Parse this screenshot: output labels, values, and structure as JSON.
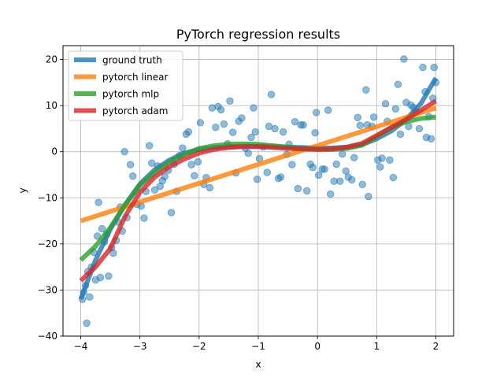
{
  "chart_data": {
    "type": "line",
    "title": "PyTorch regression results",
    "xlabel": "x",
    "ylabel": "y",
    "xlim": [
      -4.3,
      2.3
    ],
    "ylim": [
      -40,
      23
    ],
    "xticks": [
      -4,
      -3,
      -2,
      -1,
      0,
      1,
      2
    ],
    "yticks": [
      -40,
      -30,
      -20,
      -10,
      0,
      10,
      20
    ],
    "grid": true,
    "legend_position": "top-left",
    "scatter": {
      "color": "#1f77b4",
      "points": [
        [
          -3.97,
          -32
        ],
        [
          -3.95,
          -30.5
        ],
        [
          -3.92,
          -29
        ],
        [
          -3.9,
          -37.2
        ],
        [
          -3.88,
          -26
        ],
        [
          -3.85,
          -31.5
        ],
        [
          -3.82,
          -25
        ],
        [
          -3.78,
          -21.8
        ],
        [
          -3.75,
          -27.8
        ],
        [
          -3.72,
          -18.3
        ],
        [
          -3.7,
          -11
        ],
        [
          -3.67,
          -27.3
        ],
        [
          -3.64,
          -16.7
        ],
        [
          -3.6,
          -19.5
        ],
        [
          -3.56,
          -17.9
        ],
        [
          -3.53,
          -27
        ],
        [
          -3.48,
          -20.8
        ],
        [
          -3.45,
          -22
        ],
        [
          -3.4,
          -19.2
        ],
        [
          -3.36,
          -15.3
        ],
        [
          -3.33,
          -12
        ],
        [
          -3.3,
          -17.2
        ],
        [
          -3.26,
          0
        ],
        [
          -3.22,
          -14.3
        ],
        [
          -3.16,
          -2.8
        ],
        [
          -3.12,
          -5.3
        ],
        [
          -3.05,
          -11.4
        ],
        [
          -2.98,
          -11.8
        ],
        [
          -2.93,
          -14.4
        ],
        [
          -2.9,
          -8.6
        ],
        [
          -2.84,
          1.3
        ],
        [
          -2.8,
          -2.5
        ],
        [
          -2.75,
          -8.3
        ],
        [
          -2.7,
          -3.1
        ],
        [
          -2.66,
          -7.5
        ],
        [
          -2.62,
          -6.3
        ],
        [
          -2.58,
          -5.4
        ],
        [
          -2.52,
          -4
        ],
        [
          -2.47,
          -13.2
        ],
        [
          -2.42,
          -2.7
        ],
        [
          -2.38,
          -8.6
        ],
        [
          -2.33,
          -0.8
        ],
        [
          -2.28,
          0.8
        ],
        [
          -2.22,
          3.8
        ],
        [
          -2.18,
          4.3
        ],
        [
          -2.13,
          -2.8
        ],
        [
          -2.08,
          -5.2
        ],
        [
          -2.02,
          -2.2
        ],
        [
          -1.98,
          6.3
        ],
        [
          -1.92,
          -7.1
        ],
        [
          -1.88,
          -5.6
        ],
        [
          -1.82,
          -7.8
        ],
        [
          -1.78,
          9.5
        ],
        [
          -1.72,
          5.3
        ],
        [
          -1.68,
          9.8
        ],
        [
          -1.63,
          9.1
        ],
        [
          -1.58,
          6
        ],
        [
          -1.52,
          1.7
        ],
        [
          -1.48,
          11
        ],
        [
          -1.43,
          4.2
        ],
        [
          -1.38,
          -4.6
        ],
        [
          -1.33,
          6.6
        ],
        [
          -1.28,
          7.3
        ],
        [
          -1.22,
          0.8
        ],
        [
          -1.17,
          -0.3
        ],
        [
          -1.12,
          3.1
        ],
        [
          -1.08,
          9.5
        ],
        [
          -1.05,
          4.3
        ],
        [
          -1.02,
          -6
        ],
        [
          -0.98,
          -1.5
        ],
        [
          -0.92,
          1
        ],
        [
          -0.85,
          -4.5
        ],
        [
          -0.82,
          5.5
        ],
        [
          -0.78,
          12.4
        ],
        [
          -0.72,
          5
        ],
        [
          -0.66,
          -5.8
        ],
        [
          -0.62,
          -5.5
        ],
        [
          -0.58,
          4.3
        ],
        [
          -0.52,
          -0.6
        ],
        [
          -0.48,
          1.6
        ],
        [
          -0.43,
          -2.8
        ],
        [
          -0.38,
          6.5
        ],
        [
          -0.33,
          -8
        ],
        [
          -0.28,
          5.8
        ],
        [
          -0.24,
          5.8
        ],
        [
          -0.18,
          -8.5
        ],
        [
          -0.12,
          -2.7
        ],
        [
          -0.08,
          -3.4
        ],
        [
          -0.04,
          4.1
        ],
        [
          -0.02,
          8.5
        ],
        [
          0.02,
          -5.1
        ],
        [
          0.08,
          -3.8
        ],
        [
          0.12,
          -3.8
        ],
        [
          0.18,
          9
        ],
        [
          0.22,
          -9.2
        ],
        [
          0.28,
          -6.4
        ],
        [
          0.32,
          -2.7
        ],
        [
          0.38,
          -6.4
        ],
        [
          0.42,
          -0.5
        ],
        [
          0.48,
          -4.2
        ],
        [
          0.52,
          -5.5
        ],
        [
          0.58,
          -6.1
        ],
        [
          0.62,
          -1.3
        ],
        [
          0.68,
          7.4
        ],
        [
          0.72,
          5.7
        ],
        [
          0.76,
          -7.1
        ],
        [
          0.82,
          13.4
        ],
        [
          0.84,
          5.8
        ],
        [
          0.86,
          -9.7
        ],
        [
          0.92,
          5.5
        ],
        [
          0.95,
          7.5
        ],
        [
          1.02,
          -1.8
        ],
        [
          1.06,
          -3.3
        ],
        [
          1.09,
          -1.4
        ],
        [
          1.15,
          10.4
        ],
        [
          1.18,
          6.6
        ],
        [
          1.22,
          -1.8
        ],
        [
          1.28,
          -5.6
        ],
        [
          1.32,
          9.3
        ],
        [
          1.36,
          14.6
        ],
        [
          1.4,
          3.8
        ],
        [
          1.46,
          20.1
        ],
        [
          1.5,
          10.7
        ],
        [
          1.54,
          5.5
        ],
        [
          1.58,
          10.1
        ],
        [
          1.62,
          9.6
        ],
        [
          1.66,
          8.6
        ],
        [
          1.72,
          5
        ],
        [
          1.78,
          18.3
        ],
        [
          1.82,
          13
        ],
        [
          1.84,
          3.1
        ],
        [
          1.88,
          7.6
        ],
        [
          1.92,
          2.8
        ],
        [
          1.95,
          11.6
        ],
        [
          1.97,
          18.3
        ],
        [
          2,
          15
        ]
      ]
    },
    "series": [
      {
        "name": "ground truth",
        "color": "#1f77b4",
        "x": [
          -4,
          -3.75,
          -3.5,
          -3.25,
          -3,
          -2.75,
          -2.5,
          -2.25,
          -2,
          -1.75,
          -1.5,
          -1.25,
          -1,
          -0.75,
          -0.5,
          -0.25,
          0,
          0.25,
          0.5,
          0.75,
          1,
          1.25,
          1.5,
          1.75,
          2
        ],
        "y": [
          -32,
          -23.5,
          -16.8,
          -11.5,
          -7,
          -3.9,
          -1.8,
          -0.3,
          0.5,
          0.9,
          1.1,
          1.2,
          1.2,
          1.1,
          1,
          0.9,
          0.8,
          0.8,
          1,
          1.5,
          2.8,
          4.5,
          7,
          10.5,
          16
        ]
      },
      {
        "name": "pytorch linear",
        "color": "#ff7f0e",
        "x": [
          -4,
          2
        ],
        "y": [
          -15,
          9.5
        ]
      },
      {
        "name": "pytorch mlp",
        "color": "#2ca02c",
        "x": [
          -4,
          -3.75,
          -3.5,
          -3.25,
          -3,
          -2.75,
          -2.5,
          -2.25,
          -2,
          -1.75,
          -1.5,
          -1.25,
          -1,
          -0.75,
          -0.5,
          -0.25,
          0,
          0.25,
          0.5,
          0.75,
          1,
          1.25,
          1.5,
          1.75,
          2
        ],
        "y": [
          -23.5,
          -20.5,
          -16.5,
          -11.5,
          -7.2,
          -4.5,
          -2.2,
          -0.6,
          0.7,
          1.3,
          1.6,
          1.7,
          1.6,
          1.3,
          1,
          0.7,
          0.5,
          0.5,
          0.7,
          1.4,
          3.3,
          5.3,
          6.5,
          7.2,
          7.5
        ]
      },
      {
        "name": "pytorch adam",
        "color": "#d62728",
        "x": [
          -4,
          -3.75,
          -3.5,
          -3.25,
          -3,
          -2.75,
          -2.5,
          -2.25,
          -2,
          -1.75,
          -1.5,
          -1.25,
          -1,
          -0.75,
          -0.5,
          -0.25,
          0,
          0.25,
          0.5,
          0.75,
          1,
          1.25,
          1.5,
          1.75,
          2
        ],
        "y": [
          -28,
          -25,
          -21,
          -14,
          -8.8,
          -5.5,
          -3.2,
          -1.6,
          -0.3,
          0.5,
          0.9,
          1.1,
          1.1,
          0.9,
          0.7,
          0.6,
          0.5,
          0.6,
          1,
          1.8,
          3.5,
          5.3,
          7,
          9,
          11
        ]
      }
    ]
  }
}
